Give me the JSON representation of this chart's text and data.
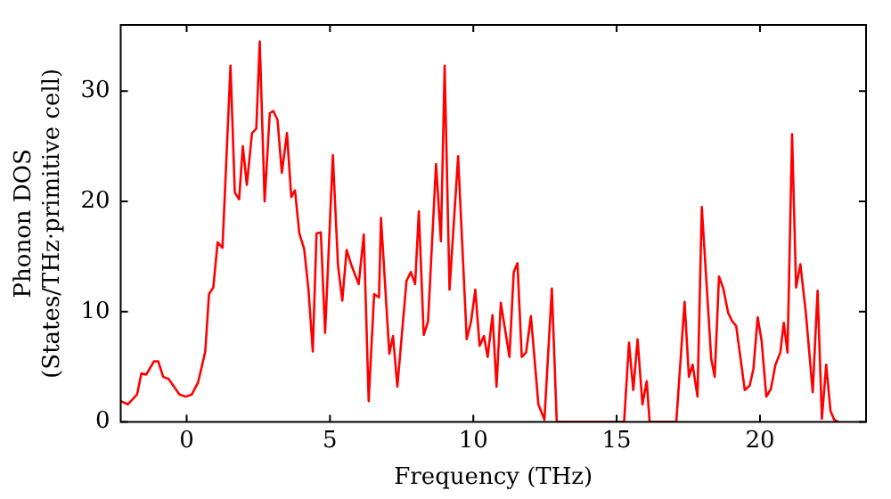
{
  "chart_data": {
    "type": "line",
    "xlabel": "Frequency (THz)",
    "ylabel": "Phonon DOS\n(States/THz·primitive cell)",
    "xlim": [
      -2.3,
      23.7
    ],
    "ylim": [
      0,
      36
    ],
    "xticks": [
      0,
      5,
      10,
      15,
      20
    ],
    "yticks": [
      0,
      10,
      20,
      30
    ],
    "grid": false,
    "legend": false,
    "marker": "none",
    "line_style": "solid",
    "series": [
      {
        "color": "#ff0000",
        "x": [
          -2.3,
          -2.05,
          -1.73,
          -1.58,
          -1.41,
          -1.14,
          -0.99,
          -0.82,
          -0.63,
          -0.25,
          -0.03,
          0.18,
          0.4,
          0.65,
          0.78,
          0.93,
          1.08,
          1.25,
          1.53,
          1.68,
          1.83,
          1.96,
          2.1,
          2.28,
          2.43,
          2.55,
          2.72,
          2.9,
          3.02,
          3.17,
          3.32,
          3.5,
          3.65,
          3.78,
          3.93,
          4.1,
          4.25,
          4.4,
          4.53,
          4.68,
          4.83,
          5.1,
          5.28,
          5.43,
          5.58,
          5.75,
          6,
          6.18,
          6.35,
          6.54,
          6.71,
          6.78,
          7.07,
          7.2,
          7.35,
          7.67,
          7.82,
          7.97,
          8.1,
          8.27,
          8.42,
          8.7,
          8.87,
          9,
          9.17,
          9.47,
          9.77,
          9.92,
          10.07,
          10.22,
          10.37,
          10.5,
          10.67,
          10.81,
          10.96,
          11.26,
          11.41,
          11.54,
          11.69,
          11.84,
          12.01,
          12.27,
          12.48,
          12.74,
          12.91,
          15.26,
          15.43,
          15.58,
          15.73,
          15.9,
          16.05,
          16.15,
          17.08,
          17.37,
          17.52,
          17.65,
          17.82,
          17.97,
          18.3,
          18.42,
          18.57,
          18.72,
          18.89,
          19.04,
          19.17,
          19.47,
          19.64,
          19.77,
          19.92,
          20.06,
          20.22,
          20.38,
          20.54,
          20.71,
          20.83,
          20.96,
          21.12,
          21.26,
          21.41,
          21.6,
          21.84,
          22.01,
          22.16,
          22.31,
          22.46,
          22.59,
          22.74
        ],
        "values": [
          1.9,
          1.6,
          2.5,
          4.4,
          4.3,
          5.5,
          5.5,
          4.1,
          3.9,
          2.5,
          2.3,
          2.5,
          3.6,
          6.4,
          11.6,
          12.2,
          16.3,
          15.8,
          32.3,
          20.8,
          20.2,
          25,
          21.5,
          26.2,
          26.6,
          34.5,
          20,
          28,
          28.2,
          27.4,
          22.6,
          26.2,
          20.4,
          21,
          17.1,
          15.7,
          12,
          6.4,
          17.1,
          17.2,
          8.1,
          24.2,
          14.2,
          11,
          15.6,
          14.2,
          12.5,
          17,
          1.9,
          11.6,
          11.3,
          18.5,
          6.2,
          7.8,
          3.2,
          12.8,
          13.6,
          12.5,
          19.1,
          7.9,
          9.1,
          23.4,
          16.4,
          32.3,
          12,
          24.1,
          7.5,
          9.1,
          12,
          6.9,
          7.8,
          5.9,
          9.7,
          3.2,
          10.8,
          5.9,
          13.6,
          14.4,
          5.9,
          6.3,
          9.6,
          1.6,
          0.2,
          12.1,
          0,
          0,
          7.2,
          2.9,
          7.5,
          1.6,
          3.7,
          0,
          0,
          10.9,
          4.1,
          5.2,
          2.3,
          19.5,
          5.7,
          4.1,
          13.2,
          12.1,
          9.9,
          9.1,
          8.7,
          2.9,
          3.3,
          4.8,
          9.5,
          7.3,
          2.3,
          3,
          5.2,
          6.3,
          9,
          6.3,
          26.1,
          12.2,
          14.3,
          9.9,
          2.7,
          11.9,
          0.3,
          5.2,
          1,
          0.2,
          0
        ]
      }
    ]
  }
}
